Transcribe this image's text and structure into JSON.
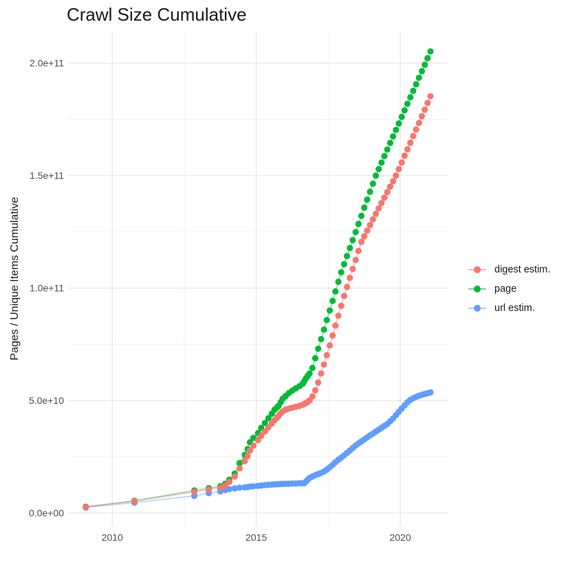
{
  "title": "Crawl Size Cumulative",
  "y_axis_label": "Pages / Unique Items Cumulative",
  "legend": {
    "position": "right",
    "items": [
      {
        "label": "digest estim.",
        "color": "#F8766D"
      },
      {
        "label": "page",
        "color": "#00BA38"
      },
      {
        "label": "url estim.",
        "color": "#619CFF"
      }
    ]
  },
  "colors": {
    "background": "#ffffff",
    "grid_major": "#e6e6e6",
    "grid_minor": "#f1f1f1",
    "tick_text": "#4d4d4d",
    "title_text": "#1a1a1a"
  },
  "chart_data": {
    "type": "line",
    "title": "Crawl Size Cumulative",
    "xlabel": "",
    "ylabel": "Pages / Unique Items Cumulative",
    "x_unit": "year (decimal, crawl date)",
    "y_unit": "cumulative count (values_billions are in 1e9 items)",
    "grid": true,
    "legend_position": "right",
    "x": [
      2009.08,
      2010.77,
      2012.85,
      2013.35,
      2013.75,
      2013.92,
      2014.06,
      2014.25,
      2014.42,
      2014.6,
      2014.7,
      2014.78,
      2014.9,
      2015.06,
      2015.17,
      2015.3,
      2015.42,
      2015.54,
      2015.63,
      2015.72,
      2015.78,
      2015.85,
      2015.92,
      2016.02,
      2016.13,
      2016.25,
      2016.37,
      2016.5,
      2016.61,
      2016.67,
      2016.73,
      2016.79,
      2016.85,
      2016.95,
      2017.05,
      2017.15,
      2017.25,
      2017.35,
      2017.45,
      2017.55,
      2017.65,
      2017.75,
      2017.85,
      2017.95,
      2018.05,
      2018.15,
      2018.25,
      2018.35,
      2018.45,
      2018.55,
      2018.65,
      2018.75,
      2018.85,
      2018.95,
      2019.05,
      2019.15,
      2019.25,
      2019.35,
      2019.45,
      2019.55,
      2019.65,
      2019.75,
      2019.85,
      2019.95,
      2020.05,
      2020.15,
      2020.25,
      2020.35,
      2020.45,
      2020.55,
      2020.65,
      2020.75,
      2020.85,
      2020.95,
      2021.05
    ],
    "series": [
      {
        "name": "digest estim.",
        "color": "#F8766D",
        "values_billions": [
          2.7,
          5.2,
          9.4,
          10.4,
          11.2,
          12.2,
          13.8,
          16.2,
          19.8,
          23.0,
          25.3,
          27.8,
          29.9,
          32.4,
          34.3,
          36.2,
          38.0,
          39.8,
          41.2,
          42.4,
          43.3,
          44.3,
          45.2,
          45.9,
          46.4,
          46.8,
          47.2,
          47.6,
          48.1,
          48.5,
          48.9,
          49.4,
          50.0,
          51.8,
          54.5,
          58.0,
          62.0,
          66.0,
          70.1,
          74.5,
          78.9,
          83.3,
          87.7,
          92.1,
          96.5,
          100.5,
          104.5,
          108.5,
          112.5,
          116.5,
          120.5,
          123.0,
          125.5,
          128.0,
          130.5,
          133.0,
          135.4,
          137.8,
          140.2,
          142.7,
          145.1,
          147.5,
          150.0,
          152.9,
          155.8,
          158.8,
          161.7,
          164.6,
          167.6,
          170.5,
          173.4,
          176.4,
          179.3,
          182.3,
          185.3
        ]
      },
      {
        "name": "page",
        "color": "#00BA38",
        "values_billions": [
          2.8,
          5.4,
          10.0,
          11.0,
          11.9,
          13.0,
          14.8,
          17.5,
          22.2,
          25.8,
          28.4,
          31.4,
          33.4,
          35.5,
          37.8,
          40.0,
          42.1,
          44.1,
          45.9,
          46.9,
          47.7,
          49.3,
          50.8,
          52.0,
          53.3,
          54.4,
          55.4,
          56.4,
          57.4,
          58.6,
          59.9,
          61.0,
          62.0,
          64.5,
          68.8,
          73.0,
          77.3,
          81.5,
          85.8,
          90.0,
          94.3,
          98.5,
          102.8,
          107.0,
          110.6,
          114.2,
          117.8,
          121.3,
          124.9,
          128.5,
          132.1,
          135.7,
          139.3,
          142.8,
          146.4,
          150.0,
          152.9,
          155.8,
          158.7,
          161.6,
          164.5,
          167.4,
          170.3,
          173.2,
          176.1,
          179.0,
          181.9,
          184.8,
          187.7,
          190.6,
          193.5,
          196.4,
          199.3,
          202.2,
          205.2
        ]
      },
      {
        "name": "url estim.",
        "color": "#619CFF",
        "values_billions": [
          2.4,
          4.6,
          7.6,
          8.8,
          9.6,
          10.2,
          10.6,
          10.9,
          11.2,
          11.4,
          11.5,
          11.7,
          11.9,
          12.0,
          12.2,
          12.4,
          12.5,
          12.6,
          12.7,
          12.8,
          12.8,
          12.9,
          12.9,
          13.0,
          13.0,
          13.1,
          13.1,
          13.2,
          13.2,
          13.3,
          14.0,
          14.8,
          15.6,
          16.2,
          16.8,
          17.3,
          17.8,
          18.4,
          19.3,
          20.3,
          21.4,
          22.6,
          23.6,
          24.6,
          25.6,
          26.7,
          27.8,
          28.9,
          30.0,
          30.9,
          31.8,
          32.7,
          33.6,
          34.5,
          35.3,
          36.2,
          37.0,
          37.9,
          38.7,
          39.6,
          40.8,
          42.0,
          43.5,
          45.0,
          46.4,
          47.8,
          49.2,
          50.3,
          51.0,
          51.6,
          52.1,
          52.5,
          52.9,
          53.2,
          53.6
        ]
      }
    ],
    "x_axis": {
      "tick_values": [
        2010,
        2015,
        2020
      ],
      "tick_labels": [
        "2010",
        "2015",
        "2020"
      ],
      "minor_tick_values": [
        2012.5,
        2017.5
      ],
      "range": [
        2008.465,
        2021.67
      ]
    },
    "y_axis": {
      "tick_values_billions": [
        0,
        50,
        100,
        150,
        200
      ],
      "tick_labels": [
        "0.0e+00",
        "5.0e+10",
        "1.0e+11",
        "1.5e+11",
        "2.0e+11"
      ],
      "minor_tick_values_billions": [
        25,
        75,
        125,
        175
      ],
      "range_billions": [
        -6.1,
        214.3
      ]
    }
  }
}
